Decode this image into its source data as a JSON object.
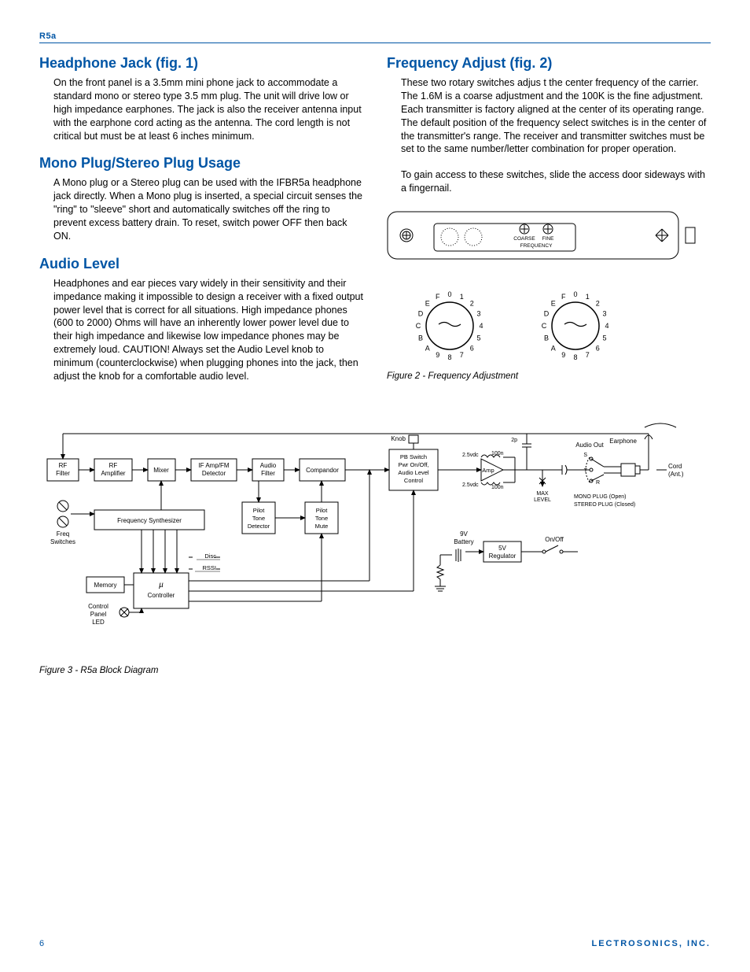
{
  "headerLabel": "R5a",
  "left": {
    "sections": [
      {
        "heading": "Headphone Jack (fig. 1)",
        "body": "On the front panel is a 3.5mm mini phone jack to accommodate a standard mono or stereo type 3.5 mm plug.  The unit will drive low or high impedance earphones.  The jack is also the receiver antenna input with the earphone cord acting as the antenna.  The cord length is not critical but must be at least 6 inches minimum."
      },
      {
        "heading": "Mono Plug/Stereo Plug Usage",
        "body": "A Mono plug or a Stereo plug can be used with the IFBR5a headphone jack directly.  When a Mono plug is inserted, a special circuit senses the \"ring\" to \"sleeve\" short and automatically switches off the ring to prevent excess battery drain.  To reset, switch power OFF then back ON."
      },
      {
        "heading": "Audio Level",
        "body": "Headphones and ear pieces vary widely in their sensitivity and their impedance making it impossible to design a receiver with a fixed output power level that is correct for all situations.  High impedance phones (600 to 2000) Ohms will have an inherently lower power level due to their high impedance and likewise low impedance phones may be extremely loud.  CAUTION! Always set the Audio Level knob to minimum (counterclockwise) when plugging phones into the jack, then adjust the knob for a comfortable audio level."
      }
    ]
  },
  "right": {
    "heading": "Frequency Adjust (fig. 2)",
    "body1": "These two rotary switches adjus t the center frequency of the carrier. The 1.6M is a coarse adjustment and the 100K is the fine adjustment. Each transmitter is factory aligned at the center of its operating range. The default position of the frequency select switches is in the center of the transmitter's range.  The receiver and transmitter switches must be set to the same number/letter combination for proper operation.",
    "body2": "To gain access to these switches, slide the access door sideways with a fingernail.",
    "panelLabels": {
      "coarse": "COARSE",
      "fine": "FINE",
      "freq": "FREQUENCY"
    },
    "dialLabels": [
      "0",
      "1",
      "2",
      "3",
      "4",
      "5",
      "6",
      "7",
      "8",
      "9",
      "A",
      "B",
      "C",
      "D",
      "E",
      "F"
    ],
    "fig2Caption": "Figure 2 - Frequency Adjustment"
  },
  "blockDiagram": {
    "caption": "Figure 3 - R5a Block Diagram",
    "blocks": {
      "rfFilter": "RF\nFilter",
      "rfAmp": "RF\nAmplifier",
      "mixer": "Mixer",
      "ifAmp": "IF Amp/FM\nDetector",
      "audioFilter": "Audio\nFilter",
      "compandor": "Compandor",
      "pbSwitch": "PB Switch\nPwr On/Off,\nAudio Level\nControl",
      "amp": "Amp",
      "freqSynth": "Frequency Synthesizer",
      "pilotDetect": "Pilot\nTone\nDetector",
      "pilotMute": "Pilot\nTone\nMute",
      "memory": "Memory",
      "controller": "Controller",
      "regulator": "5V\nRegulator"
    },
    "labels": {
      "knob": "Knob",
      "v25a": "2.5vdc",
      "v25b": "2.5vdc",
      "n100a": "100n",
      "n100b": "100n",
      "p2": "2p",
      "audioOut": "Audio Out",
      "earphone": "Earphone",
      "cord": "Cord\n(Ant.)",
      "maxLevel": "MAX\nLEVEL",
      "monoPlug": "MONO PLUG (Open)",
      "stereoPlug": "STEREO PLUG (Closed)",
      "battery": "9V\nBattery",
      "onOff": "On/Off",
      "freqSwitches": "Freq\nSwitches",
      "disc": "Disc",
      "rssi": "RSSI",
      "controlPanel": "Control\nPanel\nLED",
      "mu": "µ",
      "s": "S",
      "t": "T",
      "r": "R"
    }
  },
  "footer": {
    "page": "6",
    "company": "LECTROSONICS, INC."
  }
}
